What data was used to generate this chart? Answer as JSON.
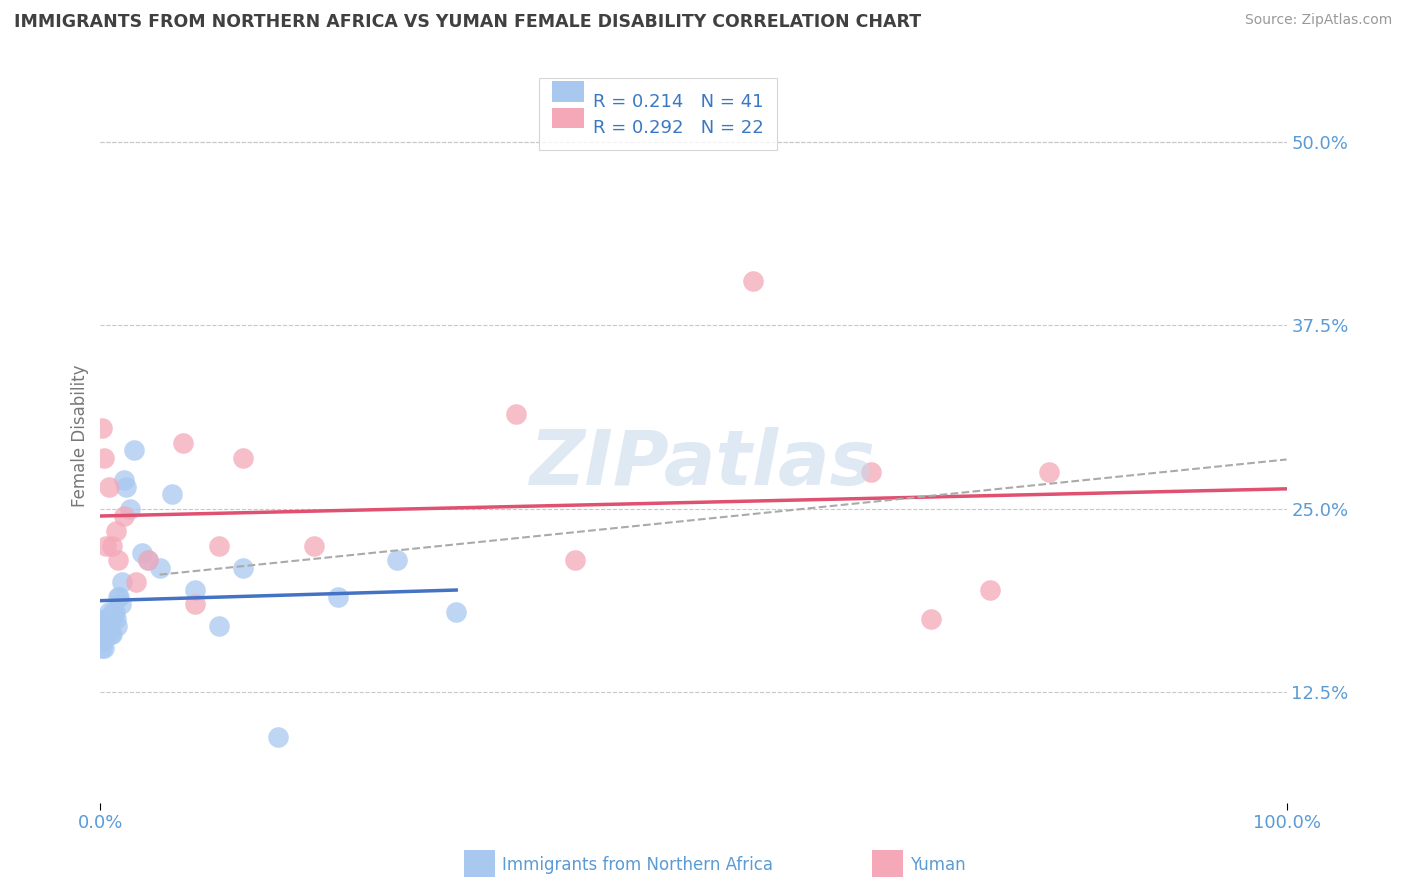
{
  "title": "IMMIGRANTS FROM NORTHERN AFRICA VS YUMAN FEMALE DISABILITY CORRELATION CHART",
  "source": "Source: ZipAtlas.com",
  "ylabel": "Female Disability",
  "blue_r": "0.214",
  "blue_n": "41",
  "pink_r": "0.292",
  "pink_n": "22",
  "blue_color": "#A8C8F0",
  "pink_color": "#F4A8B8",
  "blue_line_color": "#4472C4",
  "pink_line_color": "#E05070",
  "dashed_line_color": "#AAAAAA",
  "title_color": "#404040",
  "tick_label_color": "#5B9BD5",
  "grid_color": "#C8C8C8",
  "legend_r_color": "#3B78C3",
  "xlim": [
    0.0,
    1.0
  ],
  "ylim": [
    0.05,
    0.55
  ],
  "blue_x": [
    0.001,
    0.001,
    0.002,
    0.002,
    0.003,
    0.003,
    0.004,
    0.004,
    0.005,
    0.005,
    0.006,
    0.006,
    0.007,
    0.007,
    0.008,
    0.009,
    0.01,
    0.01,
    0.011,
    0.012,
    0.013,
    0.014,
    0.015,
    0.016,
    0.017,
    0.018,
    0.02,
    0.022,
    0.025,
    0.028,
    0.035,
    0.04,
    0.05,
    0.06,
    0.08,
    0.1,
    0.12,
    0.15,
    0.2,
    0.25,
    0.3
  ],
  "blue_y": [
    0.155,
    0.165,
    0.16,
    0.17,
    0.155,
    0.17,
    0.165,
    0.175,
    0.165,
    0.175,
    0.165,
    0.175,
    0.17,
    0.18,
    0.175,
    0.165,
    0.165,
    0.175,
    0.18,
    0.18,
    0.175,
    0.17,
    0.19,
    0.19,
    0.185,
    0.2,
    0.27,
    0.265,
    0.25,
    0.29,
    0.22,
    0.215,
    0.21,
    0.26,
    0.195,
    0.17,
    0.21,
    0.095,
    0.19,
    0.215,
    0.18
  ],
  "pink_x": [
    0.001,
    0.003,
    0.005,
    0.007,
    0.01,
    0.013,
    0.015,
    0.02,
    0.03,
    0.04,
    0.07,
    0.08,
    0.1,
    0.12,
    0.18,
    0.35,
    0.4,
    0.55,
    0.65,
    0.7,
    0.75,
    0.8
  ],
  "pink_y": [
    0.305,
    0.285,
    0.225,
    0.265,
    0.225,
    0.235,
    0.215,
    0.245,
    0.2,
    0.215,
    0.295,
    0.185,
    0.225,
    0.285,
    0.225,
    0.315,
    0.215,
    0.405,
    0.275,
    0.175,
    0.195,
    0.275
  ],
  "figsize": [
    14.06,
    8.92
  ],
  "dpi": 100,
  "y_ticks_right": [
    0.125,
    0.25,
    0.375,
    0.5
  ],
  "y_top_line": 0.5,
  "watermark": "ZIPatlas"
}
